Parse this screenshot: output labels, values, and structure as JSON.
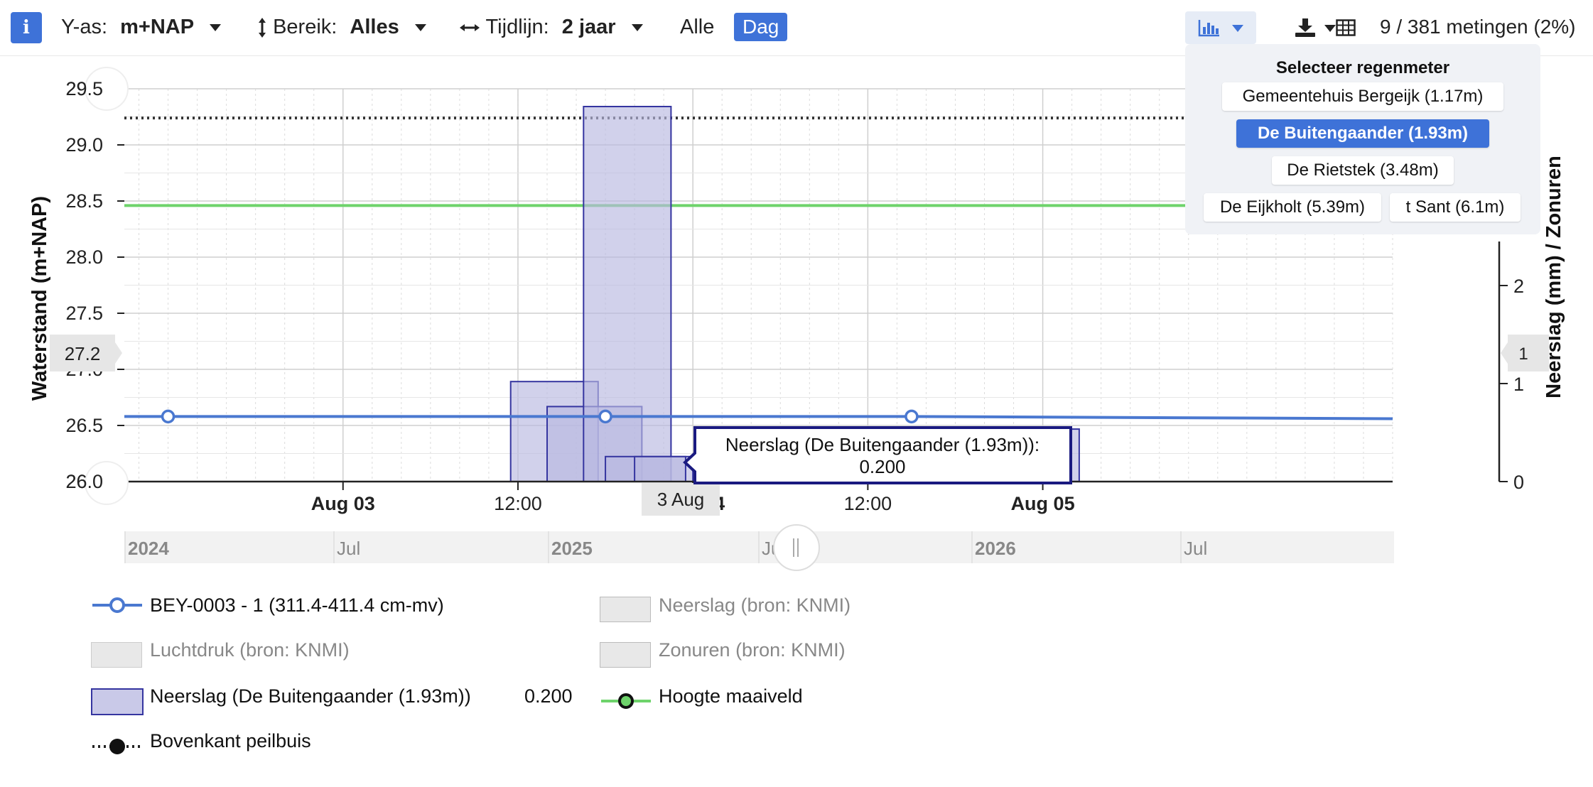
{
  "toolbar": {
    "info_label": "i",
    "yaxis_label": "Y-as:",
    "yaxis_value": "m+NAP",
    "range_label": "Bereik:",
    "range_value": "Alles",
    "timeline_label": "Tijdlijn:",
    "timeline_value": "2 jaar",
    "alle_label": "Alle",
    "dag_label": "Dag",
    "measurements": "9 / 381 metingen (2%)"
  },
  "rain_gauge_menu": {
    "title": "Selecteer regenmeter",
    "options": [
      {
        "label": "Gemeentehuis Bergeijk (1.17m)",
        "active": false
      },
      {
        "label": "De Buitengaander (1.93m)",
        "active": true
      },
      {
        "label": "De Rietstek (3.48m)",
        "active": false
      },
      {
        "label": "De Eijkholt (5.39m)",
        "active": false
      },
      {
        "label": "t Sant (6.1m)",
        "active": false
      }
    ]
  },
  "chart_data": {
    "type": "line",
    "ylabel": "Waterstand (m+NAP)",
    "y2label": "Neerslag (mm) / Zonuren",
    "ylim": [
      26.0,
      29.5
    ],
    "y2lim": [
      0,
      3.15
    ],
    "x_range_hours": [
      -15,
      72
    ],
    "y_ticks": [
      "26.0",
      "26.5",
      "27.0",
      "27.5",
      "28.0",
      "28.5",
      "29.0",
      "29.5"
    ],
    "y2_ticks": [
      "0",
      "1",
      "2"
    ],
    "x_ticks": [
      {
        "label": "Aug 03",
        "hour": 0,
        "bold": true
      },
      {
        "label": "12:00",
        "hour": 12,
        "bold": false
      },
      {
        "label": "Aug 04",
        "hour": 24,
        "bold": true
      },
      {
        "label": "12:00",
        "hour": 36,
        "bold": false
      },
      {
        "label": "Aug 05",
        "hour": 48,
        "bold": true
      }
    ],
    "crosshair": {
      "x_label": "3 Aug",
      "y_label": "27.2",
      "y2_label": "1"
    },
    "series": [
      {
        "name": "BEY-0003 - 1 (311.4-411.4 cm-mv)",
        "color": "#4a78d0",
        "points": [
          {
            "hour": -15,
            "value": 26.58
          },
          {
            "hour": -12,
            "value": 26.58,
            "marker": true
          },
          {
            "hour": 18,
            "value": 26.58,
            "marker": true
          },
          {
            "hour": 39,
            "value": 26.58,
            "marker": true
          },
          {
            "hour": 72,
            "value": 26.56
          }
        ]
      },
      {
        "name": "Neerslag (De Buitengaander (1.93m))",
        "color": "#a3a3d6",
        "axis": "y2",
        "bars": [
          {
            "start": 11.5,
            "end": 17.5,
            "value": 0.8
          },
          {
            "start": 14,
            "end": 20.5,
            "value": 0.6
          },
          {
            "start": 16.5,
            "end": 22.5,
            "value": 3.0
          },
          {
            "start": 18,
            "end": 24,
            "value": 0.2
          },
          {
            "start": 20,
            "end": 23.5,
            "value": 0.2
          },
          {
            "start": 42.5,
            "end": 49,
            "value": 0.2
          },
          {
            "start": 43.5,
            "end": 50.5,
            "value": 0.42
          }
        ]
      },
      {
        "name": "Hoogte maaiveld",
        "color": "#6ed36b",
        "value": 28.46
      },
      {
        "name": "Bovenkant peilbuis",
        "color": "#444444",
        "value": 29.24
      }
    ],
    "navigator": {
      "labels": [
        {
          "label": "2024",
          "bold": true
        },
        {
          "label": "Jul",
          "bold": false
        },
        {
          "label": "2025",
          "bold": true
        },
        {
          "label": "Jul",
          "bold": false
        },
        {
          "label": "2026",
          "bold": true
        },
        {
          "label": "Jul",
          "bold": false
        }
      ]
    },
    "tooltip": {
      "title": "Neerslag (De Buitengaander (1.93m)):",
      "value": "0.200"
    }
  },
  "legend": {
    "items": [
      {
        "label": "BEY-0003 - 1 (311.4-411.4 cm-mv)",
        "muted": false
      },
      {
        "label": "Neerslag (bron: KNMI)",
        "muted": true
      },
      {
        "label": "Luchtdruk (bron: KNMI)",
        "muted": true
      },
      {
        "label": "Zonuren (bron: KNMI)",
        "muted": true
      },
      {
        "label": "Neerslag (De Buitengaander (1.93m))",
        "muted": false,
        "value": "0.200"
      },
      {
        "label": "Hoogte maaiveld",
        "muted": false
      },
      {
        "label": "Bovenkant peilbuis",
        "muted": false
      }
    ]
  },
  "colors": {
    "accent": "#3e72d8",
    "water_line": "#4a78d0",
    "rain_fill": "#c9c9e8",
    "rain_stroke": "#3535a0",
    "ground": "#6ed36b"
  },
  "icons": [
    "info-icon",
    "vertical-arrow-icon",
    "horizontal-arrow-icon",
    "bar-chart-icon",
    "download-icon",
    "table-icon",
    "chevron-down-icon"
  ]
}
